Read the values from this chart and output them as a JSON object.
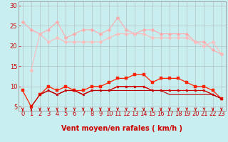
{
  "x": [
    0,
    1,
    2,
    3,
    4,
    5,
    6,
    7,
    8,
    9,
    10,
    11,
    12,
    13,
    14,
    15,
    16,
    17,
    18,
    19,
    20,
    21,
    22,
    23
  ],
  "series": [
    {
      "color": "#ffaaaa",
      "marker": "D",
      "markersize": 2.5,
      "linewidth": 0.8,
      "y": [
        26,
        24,
        23,
        24,
        26,
        22,
        23,
        24,
        24,
        23,
        24,
        27,
        24,
        23,
        24,
        24,
        23,
        23,
        23,
        23,
        21,
        21,
        19,
        18
      ]
    },
    {
      "color": "#ffbbbb",
      "marker": "D",
      "markersize": 2.5,
      "linewidth": 0.8,
      "y": [
        null,
        14,
        23,
        21,
        22,
        21,
        21,
        21,
        21,
        21,
        22,
        23,
        23,
        23,
        23,
        22,
        22,
        22,
        22,
        22,
        21,
        20,
        21,
        18
      ]
    },
    {
      "color": "#ff2200",
      "marker": "s",
      "markersize": 2.5,
      "linewidth": 0.9,
      "y": [
        9,
        5,
        8,
        10,
        9,
        10,
        9,
        9,
        10,
        10,
        11,
        12,
        12,
        13,
        13,
        11,
        12,
        12,
        12,
        11,
        10,
        10,
        9,
        7
      ]
    },
    {
      "color": "#ee1100",
      "marker": "s",
      "markersize": 2.0,
      "linewidth": 0.8,
      "y": [
        null,
        null,
        8,
        9,
        8,
        9,
        9,
        8,
        9,
        9,
        9,
        10,
        10,
        10,
        10,
        9,
        9,
        9,
        9,
        9,
        9,
        9,
        8,
        7
      ]
    },
    {
      "color": "#cc0000",
      "marker": "^",
      "markersize": 2.0,
      "linewidth": 0.8,
      "y": [
        null,
        null,
        8,
        9,
        8,
        9,
        9,
        8,
        9,
        9,
        9,
        10,
        10,
        10,
        10,
        9,
        9,
        9,
        9,
        9,
        9,
        9,
        8,
        7
      ]
    },
    {
      "color": "#bb0000",
      "marker": null,
      "markersize": 0,
      "linewidth": 0.8,
      "y": [
        null,
        5,
        8,
        9,
        8,
        9,
        9,
        8,
        9,
        9,
        9,
        9,
        9,
        9,
        9,
        9,
        9,
        8,
        8,
        8,
        8,
        8,
        8,
        7
      ]
    }
  ],
  "xlabel": "Vent moyen/en rafales ( km/h )",
  "xlim": [
    -0.5,
    23.5
  ],
  "ylim": [
    4,
    31
  ],
  "yticks": [
    5,
    10,
    15,
    20,
    25,
    30
  ],
  "xticks": [
    0,
    1,
    2,
    3,
    4,
    5,
    6,
    7,
    8,
    9,
    10,
    11,
    12,
    13,
    14,
    15,
    16,
    17,
    18,
    19,
    20,
    21,
    22,
    23
  ],
  "bg_color": "#c8eef0",
  "grid_color": "#aaaaaa",
  "arrow_color": "#cc0000",
  "tick_label_color": "#cc0000",
  "xlabel_color": "#cc0000",
  "xlabel_fontsize": 7,
  "tick_fontsize": 6
}
